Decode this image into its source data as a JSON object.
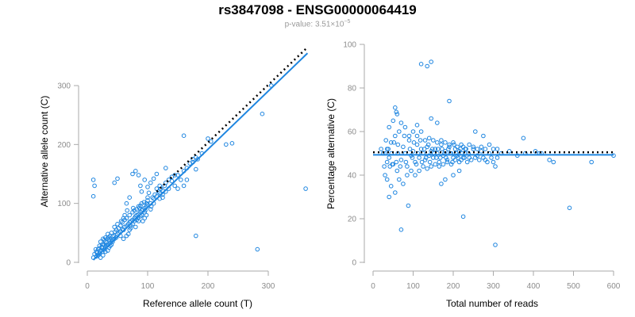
{
  "figure": {
    "title": "rs3847098 - ENSG00000064419",
    "subtitle_prefix": "p-value: 3.51×10",
    "subtitle_exponent": "−5",
    "point_color": "#1f86e0",
    "fit_color": "#1f86e0",
    "expected_color": "#000000"
  },
  "chart_data": [
    {
      "type": "scatter",
      "xlabel": "Reference allele count (T)",
      "ylabel": "Alternative allele count (C)",
      "xlim": [
        0,
        370
      ],
      "ylim": [
        0,
        370
      ],
      "xticks": [
        0,
        100,
        200,
        300
      ],
      "yticks": [
        0,
        100,
        200,
        300
      ],
      "grid": false,
      "fit_line": {
        "x": [
          10,
          365
        ],
        "y": [
          4,
          355
        ]
      },
      "expected_line": {
        "x": [
          115,
          365
        ],
        "y": [
          120,
          365
        ]
      },
      "points": [
        [
          20,
          15
        ],
        [
          22,
          20
        ],
        [
          24,
          25
        ],
        [
          26,
          30
        ],
        [
          28,
          22
        ],
        [
          30,
          35
        ],
        [
          25,
          18
        ],
        [
          18,
          12
        ],
        [
          15,
          10
        ],
        [
          32,
          28
        ],
        [
          35,
          30
        ],
        [
          38,
          33
        ],
        [
          40,
          36
        ],
        [
          42,
          38
        ],
        [
          45,
          40
        ],
        [
          28,
          38
        ],
        [
          33,
          40
        ],
        [
          36,
          25
        ],
        [
          40,
          30
        ],
        [
          44,
          45
        ],
        [
          48,
          42
        ],
        [
          50,
          48
        ],
        [
          52,
          50
        ],
        [
          55,
          52
        ],
        [
          58,
          56
        ],
        [
          60,
          55
        ],
        [
          62,
          60
        ],
        [
          65,
          62
        ],
        [
          68,
          65
        ],
        [
          70,
          68
        ],
        [
          72,
          70
        ],
        [
          75,
          72
        ],
        [
          78,
          75
        ],
        [
          80,
          78
        ],
        [
          82,
          80
        ],
        [
          85,
          82
        ],
        [
          88,
          85
        ],
        [
          90,
          88
        ],
        [
          92,
          90
        ],
        [
          95,
          92
        ],
        [
          98,
          95
        ],
        [
          100,
          98
        ],
        [
          58,
          68
        ],
        [
          62,
          72
        ],
        [
          65,
          75
        ],
        [
          70,
          80
        ],
        [
          72,
          62
        ],
        [
          75,
          65
        ],
        [
          78,
          70
        ],
        [
          82,
          90
        ],
        [
          85,
          95
        ],
        [
          88,
          78
        ],
        [
          90,
          80
        ],
        [
          95,
          85
        ],
        [
          98,
          100
        ],
        [
          100,
          105
        ],
        [
          105,
          100
        ],
        [
          108,
          110
        ],
        [
          110,
          108
        ],
        [
          112,
          115
        ],
        [
          115,
          112
        ],
        [
          118,
          120
        ],
        [
          120,
          118
        ],
        [
          122,
          125
        ],
        [
          125,
          122
        ],
        [
          128,
          130
        ],
        [
          45,
          60
        ],
        [
          50,
          65
        ],
        [
          55,
          45
        ],
        [
          40,
          50
        ],
        [
          38,
          45
        ],
        [
          35,
          42
        ],
        [
          30,
          25
        ],
        [
          25,
          30
        ],
        [
          22,
          35
        ],
        [
          20,
          28
        ],
        [
          18,
          22
        ],
        [
          15,
          18
        ],
        [
          12,
          14
        ],
        [
          10,
          8
        ],
        [
          60,
          40
        ],
        [
          65,
          45
        ],
        [
          70,
          55
        ],
        [
          75,
          85
        ],
        [
          80,
          60
        ],
        [
          85,
          70
        ],
        [
          90,
          100
        ],
        [
          95,
          75
        ],
        [
          100,
          110
        ],
        [
          105,
          90
        ],
        [
          110,
          100
        ],
        [
          115,
          125
        ],
        [
          120,
          130
        ],
        [
          125,
          110
        ],
        [
          130,
          135
        ],
        [
          135,
          140
        ],
        [
          140,
          145
        ],
        [
          145,
          130
        ],
        [
          150,
          148
        ],
        [
          155,
          140
        ],
        [
          160,
          155
        ],
        [
          165,
          160
        ],
        [
          170,
          168
        ],
        [
          175,
          170
        ],
        [
          180,
          178
        ],
        [
          190,
          185
        ],
        [
          200,
          210
        ],
        [
          205,
          205
        ],
        [
          230,
          200
        ],
        [
          240,
          202
        ],
        [
          160,
          215
        ],
        [
          180,
          45
        ],
        [
          10,
          140
        ],
        [
          12,
          130
        ],
        [
          10,
          112
        ],
        [
          50,
          142
        ],
        [
          45,
          135
        ],
        [
          60,
          75
        ],
        [
          55,
          62
        ],
        [
          48,
          55
        ],
        [
          42,
          35
        ],
        [
          38,
          28
        ],
        [
          34,
          20
        ],
        [
          30,
          18
        ],
        [
          26,
          12
        ],
        [
          22,
          8
        ],
        [
          65,
          100
        ],
        [
          70,
          110
        ],
        [
          75,
          150
        ],
        [
          80,
          155
        ],
        [
          85,
          148
        ],
        [
          88,
          130
        ],
        [
          90,
          120
        ],
        [
          95,
          140
        ],
        [
          100,
          128
        ],
        [
          105,
          135
        ],
        [
          110,
          142
        ],
        [
          115,
          150
        ],
        [
          120,
          108
        ],
        [
          125,
          115
        ],
        [
          130,
          120
        ],
        [
          135,
          125
        ],
        [
          140,
          138
        ],
        [
          150,
          125
        ],
        [
          160,
          130
        ],
        [
          165,
          140
        ],
        [
          130,
          160
        ],
        [
          175,
          175
        ],
        [
          145,
          148
        ],
        [
          180,
          158
        ],
        [
          183,
          175
        ],
        [
          290,
          252
        ],
        [
          305,
          300
        ],
        [
          282,
          22
        ],
        [
          362,
          125
        ],
        [
          68,
          48
        ],
        [
          72,
          58
        ],
        [
          78,
          88
        ],
        [
          82,
          72
        ],
        [
          86,
          92
        ],
        [
          92,
          70
        ],
        [
          96,
          88
        ],
        [
          102,
          118
        ],
        [
          106,
          95
        ],
        [
          98,
          80
        ],
        [
          94,
          102
        ],
        [
          88,
          96
        ],
        [
          84,
          76
        ],
        [
          76,
          92
        ],
        [
          66,
          88
        ],
        [
          62,
          80
        ],
        [
          56,
          70
        ],
        [
          52,
          58
        ],
        [
          46,
          52
        ],
        [
          42,
          44
        ],
        [
          36,
          38
        ],
        [
          32,
          34
        ],
        [
          28,
          30
        ],
        [
          24,
          26
        ],
        [
          20,
          24
        ],
        [
          16,
          16
        ],
        [
          14,
          22
        ],
        [
          26,
          40
        ],
        [
          30,
          42
        ],
        [
          34,
          48
        ]
      ]
    },
    {
      "type": "scatter",
      "xlabel": "Total number of reads",
      "ylabel": "Percentage alternative (C)",
      "xlim": [
        0,
        600
      ],
      "ylim": [
        0,
        100
      ],
      "xticks": [
        0,
        100,
        200,
        300,
        400,
        500,
        600
      ],
      "yticks": [
        0,
        20,
        40,
        60,
        80,
        100
      ],
      "grid": false,
      "fit_line": {
        "x": [
          0,
          600
        ],
        "y": [
          49.3,
          49.3
        ]
      },
      "expected_line": {
        "x": [
          0,
          600
        ],
        "y": [
          50.5,
          50.5
        ]
      },
      "points": [
        [
          30,
          50
        ],
        [
          35,
          52
        ],
        [
          40,
          48
        ],
        [
          45,
          55
        ],
        [
          50,
          45
        ],
        [
          55,
          58
        ],
        [
          60,
          42
        ],
        [
          65,
          60
        ],
        [
          70,
          47
        ],
        [
          75,
          53
        ],
        [
          80,
          50
        ],
        [
          85,
          44
        ],
        [
          90,
          56
        ],
        [
          95,
          49
        ],
        [
          100,
          51
        ],
        [
          105,
          46
        ],
        [
          110,
          54
        ],
        [
          115,
          48
        ],
        [
          120,
          52
        ],
        [
          125,
          50
        ],
        [
          130,
          47
        ],
        [
          135,
          53
        ],
        [
          140,
          49
        ],
        [
          145,
          51
        ],
        [
          150,
          48
        ],
        [
          155,
          52
        ],
        [
          160,
          50
        ],
        [
          165,
          46
        ],
        [
          170,
          54
        ],
        [
          175,
          49
        ],
        [
          180,
          51
        ],
        [
          185,
          47
        ],
        [
          190,
          53
        ],
        [
          195,
          50
        ],
        [
          200,
          48
        ],
        [
          205,
          52
        ],
        [
          210,
          49
        ],
        [
          215,
          51
        ],
        [
          220,
          47
        ],
        [
          225,
          53
        ],
        [
          230,
          50
        ],
        [
          240,
          48
        ],
        [
          250,
          52
        ],
        [
          260,
          49
        ],
        [
          270,
          51
        ],
        [
          280,
          47
        ],
        [
          290,
          50
        ],
        [
          300,
          52
        ],
        [
          310,
          48
        ],
        [
          320,
          50
        ],
        [
          340,
          51
        ],
        [
          360,
          49
        ],
        [
          380,
          50
        ],
        [
          420,
          50
        ],
        [
          440,
          47
        ],
        [
          450,
          46
        ],
        [
          30,
          40
        ],
        [
          35,
          38
        ],
        [
          40,
          62
        ],
        [
          45,
          35
        ],
        [
          50,
          65
        ],
        [
          55,
          32
        ],
        [
          60,
          68
        ],
        [
          65,
          38
        ],
        [
          70,
          64
        ],
        [
          75,
          36
        ],
        [
          80,
          62
        ],
        [
          85,
          40
        ],
        [
          90,
          58
        ],
        [
          95,
          42
        ],
        [
          100,
          60
        ],
        [
          105,
          40
        ],
        [
          110,
          58
        ],
        [
          115,
          42
        ],
        [
          120,
          60
        ],
        [
          125,
          44
        ],
        [
          130,
          56
        ],
        [
          135,
          43
        ],
        [
          140,
          57
        ],
        [
          145,
          44
        ],
        [
          150,
          56
        ],
        [
          155,
          45
        ],
        [
          160,
          55
        ],
        [
          165,
          44
        ],
        [
          170,
          56
        ],
        [
          175,
          45
        ],
        [
          180,
          55
        ],
        [
          185,
          46
        ],
        [
          190,
          54
        ],
        [
          195,
          45
        ],
        [
          200,
          55
        ],
        [
          205,
          47
        ],
        [
          210,
          53
        ],
        [
          215,
          46
        ],
        [
          220,
          54
        ],
        [
          225,
          48
        ],
        [
          230,
          52
        ],
        [
          235,
          46
        ],
        [
          240,
          54
        ],
        [
          245,
          47
        ],
        [
          250,
          53
        ],
        [
          255,
          48
        ],
        [
          260,
          52
        ],
        [
          265,
          47
        ],
        [
          270,
          53
        ],
        [
          275,
          48
        ],
        [
          280,
          52
        ],
        [
          285,
          46
        ],
        [
          290,
          54
        ],
        [
          295,
          48
        ],
        [
          300,
          46
        ],
        [
          305,
          44
        ],
        [
          310,
          52
        ],
        [
          120,
          91
        ],
        [
          135,
          90
        ],
        [
          145,
          92
        ],
        [
          70,
          15
        ],
        [
          88,
          26
        ],
        [
          225,
          21
        ],
        [
          305,
          8
        ],
        [
          490,
          25
        ],
        [
          545,
          46
        ],
        [
          600,
          49
        ],
        [
          190,
          74
        ],
        [
          55,
          71
        ],
        [
          58,
          69
        ],
        [
          110,
          63
        ],
        [
          145,
          66
        ],
        [
          160,
          64
        ],
        [
          255,
          60
        ],
        [
          275,
          58
        ],
        [
          375,
          57
        ],
        [
          405,
          51
        ],
        [
          415,
          50
        ],
        [
          40,
          30
        ],
        [
          48,
          45
        ],
        [
          52,
          55
        ],
        [
          62,
          50
        ],
        [
          68,
          44
        ],
        [
          78,
          58
        ],
        [
          82,
          46
        ],
        [
          92,
          52
        ],
        [
          98,
          48
        ],
        [
          102,
          55
        ],
        [
          108,
          45
        ],
        [
          112,
          50
        ],
        [
          118,
          56
        ],
        [
          122,
          46
        ],
        [
          128,
          52
        ],
        [
          132,
          48
        ],
        [
          138,
          54
        ],
        [
          142,
          46
        ],
        [
          148,
          52
        ],
        [
          152,
          50
        ],
        [
          158,
          48
        ],
        [
          162,
          52
        ],
        [
          168,
          48
        ],
        [
          172,
          52
        ],
        [
          178,
          50
        ],
        [
          182,
          48
        ],
        [
          188,
          52
        ],
        [
          192,
          50
        ],
        [
          198,
          46
        ],
        [
          202,
          54
        ],
        [
          208,
          50
        ],
        [
          212,
          48
        ],
        [
          218,
          52
        ],
        [
          222,
          50
        ],
        [
          228,
          48
        ],
        [
          232,
          52
        ],
        [
          238,
          50
        ],
        [
          180,
          38
        ],
        [
          200,
          40
        ],
        [
          215,
          42
        ],
        [
          170,
          36
        ],
        [
          35,
          46
        ],
        [
          25,
          50
        ],
        [
          20,
          52
        ],
        [
          28,
          44
        ],
        [
          32,
          56
        ],
        [
          42,
          44
        ],
        [
          38,
          52
        ],
        [
          46,
          50
        ],
        [
          58,
          46
        ],
        [
          62,
          54
        ]
      ]
    }
  ]
}
